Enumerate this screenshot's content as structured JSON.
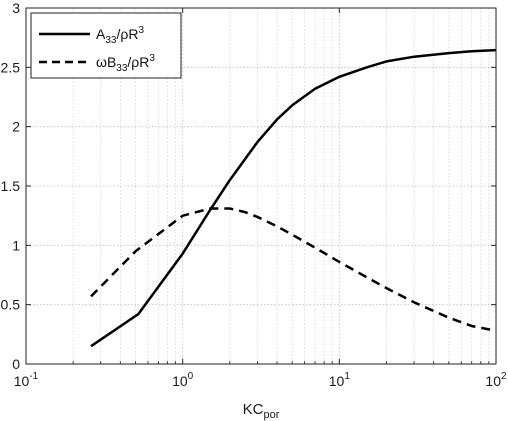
{
  "chart_data": {
    "type": "line",
    "title": "",
    "xlabel": {
      "base": "KC",
      "subscript": "por"
    },
    "ylabel": "",
    "x_scale": "log",
    "xlim": [
      0.1,
      100
    ],
    "ylim": [
      0,
      3
    ],
    "grid": true,
    "legend_position": "top-left",
    "x_ticks": [
      {
        "base": "10",
        "exp": "-1",
        "value": 0.1
      },
      {
        "base": "10",
        "exp": "0",
        "value": 1
      },
      {
        "base": "10",
        "exp": "1",
        "value": 10
      },
      {
        "base": "10",
        "exp": "2",
        "value": 100
      }
    ],
    "y_ticks": [
      {
        "label": "0",
        "value": 0
      },
      {
        "label": "0.5",
        "value": 0.5
      },
      {
        "label": "1",
        "value": 1
      },
      {
        "label": "1.5",
        "value": 1.5
      },
      {
        "label": "2",
        "value": 2
      },
      {
        "label": "2.5",
        "value": 2.5
      },
      {
        "label": "3",
        "value": 3
      }
    ],
    "series": [
      {
        "name_parts": {
          "prefix": "",
          "sym": "A",
          "sub": "33",
          "mid": "/ρR",
          "sup": "3"
        },
        "style": "solid",
        "color": "#000000",
        "x": [
          0.26,
          0.52,
          1.0,
          1.5,
          2.0,
          3.0,
          4.0,
          5.0,
          7.0,
          10,
          15,
          20,
          30,
          50,
          70,
          100
        ],
        "y": [
          0.15,
          0.42,
          0.93,
          1.3,
          1.55,
          1.87,
          2.06,
          2.18,
          2.32,
          2.42,
          2.5,
          2.55,
          2.59,
          2.62,
          2.635,
          2.645
        ]
      },
      {
        "name_parts": {
          "prefix": "ω",
          "sym": "B",
          "sub": "33",
          "mid": "/ρR",
          "sup": "3"
        },
        "style": "dashed",
        "color": "#000000",
        "x": [
          0.26,
          0.5,
          1.0,
          1.5,
          2.0,
          2.5,
          3.0,
          4.0,
          5.0,
          7.0,
          10,
          15,
          20,
          30,
          50,
          70,
          100
        ],
        "y": [
          0.57,
          0.95,
          1.25,
          1.31,
          1.31,
          1.28,
          1.24,
          1.16,
          1.09,
          0.98,
          0.86,
          0.73,
          0.64,
          0.52,
          0.39,
          0.32,
          0.28
        ]
      }
    ]
  }
}
